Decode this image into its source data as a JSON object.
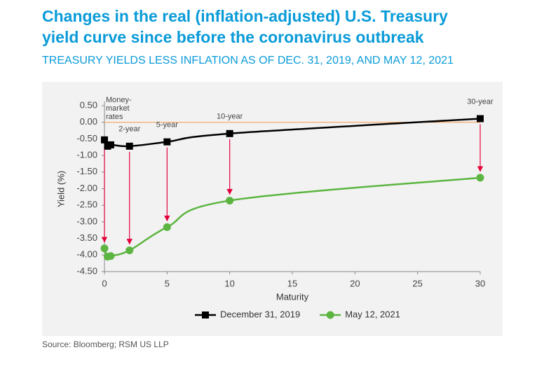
{
  "chart_data": {
    "type": "line",
    "title": [
      "Changes in the real (inflation-adjusted) U.S. Treasury",
      "yield curve since before the coronavirus outbreak"
    ],
    "subtitle": "TREASURY YIELDS LESS INFLATION AS OF DEC. 31, 2019, AND MAY 12, 2021",
    "x_label": "Maturity",
    "y_label": "Yield (%)",
    "source": "Source: Bloomberg; RSM US LLP",
    "x": [
      0,
      0.25,
      0.5,
      2,
      5,
      10,
      30
    ],
    "series": [
      {
        "name": "December 31, 2019",
        "color": "#000000",
        "marker": "square",
        "values": [
          -0.53,
          -0.72,
          -0.68,
          -0.72,
          -0.59,
          -0.34,
          0.11
        ]
      },
      {
        "name": "May 12, 2021",
        "color": "#5cb540",
        "marker": "circle",
        "values": [
          -3.8,
          -4.05,
          -4.03,
          -3.86,
          -3.16,
          -2.36,
          -1.67
        ]
      }
    ],
    "xlim": [
      0,
      30
    ],
    "xticks": [
      0,
      5,
      10,
      15,
      20,
      25,
      30
    ],
    "ylim": [
      -4.5,
      0.5
    ],
    "yticks": [
      {
        "value": 0.5,
        "label": "0.50"
      },
      {
        "value": 0,
        "label": "0.00"
      },
      {
        "value": -0.5,
        "label": "-0.50"
      },
      {
        "value": -1,
        "label": "-1.00"
      },
      {
        "value": -1.5,
        "label": "-1.50"
      },
      {
        "value": -2,
        "label": "-2.00"
      },
      {
        "value": -2.5,
        "label": "-2.50"
      },
      {
        "value": -3,
        "label": "-3.00"
      },
      {
        "value": -3.5,
        "label": "-3.50"
      },
      {
        "value": -4,
        "label": "-4.00"
      },
      {
        "value": -4.5,
        "label": "-4.50"
      }
    ],
    "reference_line": {
      "y": 0,
      "color": "#f4a460"
    },
    "arrow_color": "#e4003b",
    "annotations": [
      {
        "lines": [
          "Money-",
          "market",
          "rates"
        ],
        "x": 0
      },
      {
        "lines": [
          "2-year"
        ],
        "x": 2
      },
      {
        "lines": [
          "5-year"
        ],
        "x": 5
      },
      {
        "lines": [
          "10-year"
        ],
        "x": 10
      },
      {
        "lines": [
          "30-year"
        ],
        "x": 30
      }
    ],
    "grid": false,
    "legend": "bottom"
  }
}
